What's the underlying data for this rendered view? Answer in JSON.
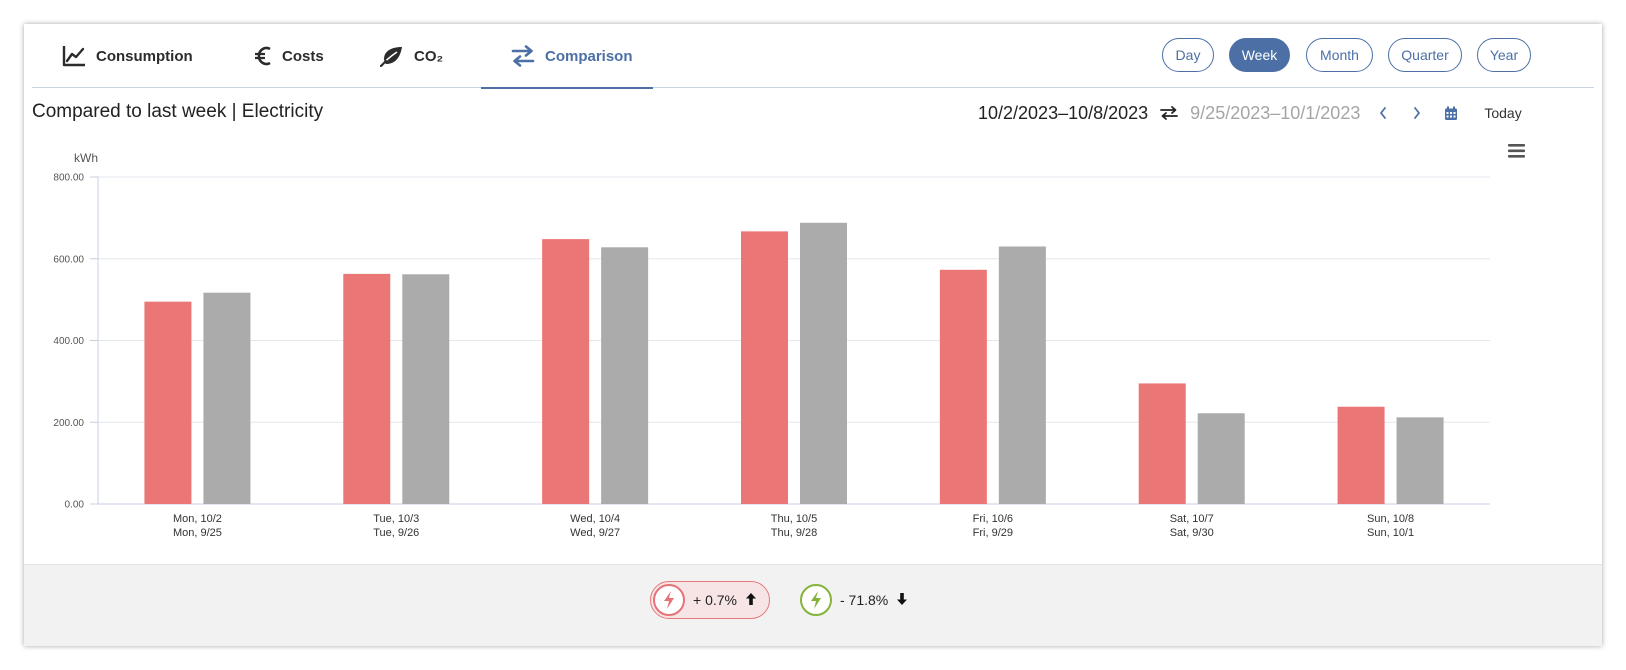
{
  "tabs": [
    {
      "label": "Consumption",
      "icon": "line-chart-icon"
    },
    {
      "label": "Costs",
      "icon": "euro-icon"
    },
    {
      "label": "CO₂",
      "icon": "leaf-icon"
    },
    {
      "label": "Comparison",
      "icon": "swap-arrows-icon",
      "active": true
    }
  ],
  "ranges": [
    {
      "label": "Day"
    },
    {
      "label": "Week",
      "active": true
    },
    {
      "label": "Month"
    },
    {
      "label": "Quarter"
    },
    {
      "label": "Year"
    }
  ],
  "header": {
    "title": "Compared to last week | Electricity",
    "current_period": "10/2/2023–10/8/2023",
    "previous_period": "9/25/2023–10/1/2023",
    "today_label": "Today"
  },
  "chart_data": {
    "type": "bar",
    "ylabel": "kWh",
    "ylim": [
      0,
      800
    ],
    "yticks": [
      "0.00",
      "200.00",
      "400.00",
      "600.00",
      "800.00"
    ],
    "grid": true,
    "categories": [
      [
        "Mon, 10/2",
        "Mon, 9/25"
      ],
      [
        "Tue, 10/3",
        "Tue, 9/26"
      ],
      [
        "Wed, 10/4",
        "Wed, 9/27"
      ],
      [
        "Thu, 10/5",
        "Thu, 9/28"
      ],
      [
        "Fri, 10/6",
        "Fri, 9/29"
      ],
      [
        "Sat, 10/7",
        "Sat, 9/30"
      ],
      [
        "Sun, 10/8",
        "Sun, 10/1"
      ]
    ],
    "series": [
      {
        "values": [
          495,
          563,
          648,
          667,
          573,
          295,
          238
        ],
        "color": "#eb7676"
      },
      {
        "values": [
          517,
          562,
          628,
          688,
          630,
          222,
          212
        ],
        "color": "#ababab"
      }
    ]
  },
  "footer": {
    "stats": [
      {
        "value": "+ 0.7%",
        "icon": "lightning-icon",
        "trend": "arrow-up-icon",
        "color": "#e47379"
      },
      {
        "value": "- 71.8%",
        "icon": "lightning-icon",
        "trend": "arrow-down-icon",
        "color": "#86b23b"
      }
    ]
  }
}
